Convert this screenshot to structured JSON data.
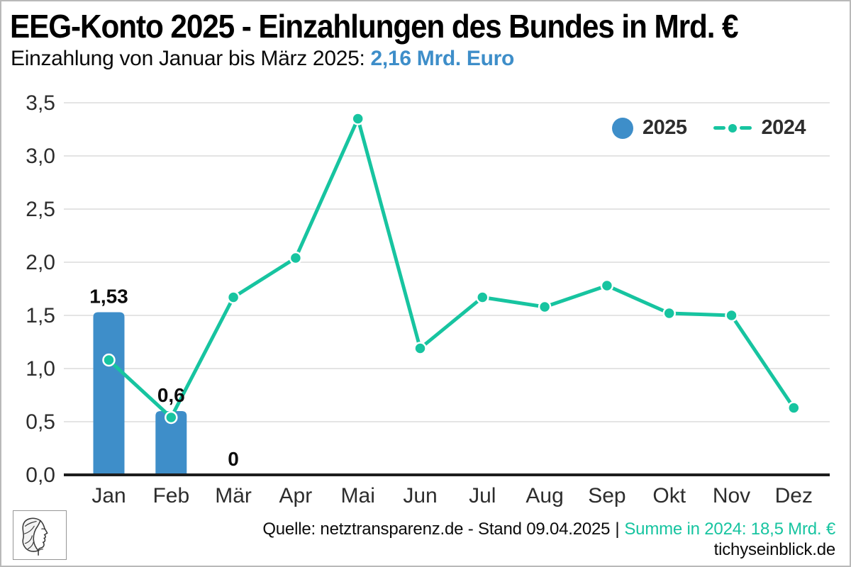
{
  "header": {
    "title": "EEG-Konto 2025 - Einzahlungen des Bundes in Mrd. €",
    "subtitle_prefix": "Einzahlung von Januar bis März 2025: ",
    "subtitle_highlight": "2,16 Mrd. Euro"
  },
  "legend": {
    "item_2025": "2025",
    "item_2024": "2024",
    "position": "top-right"
  },
  "footer": {
    "source_text": "Quelle: netztransparenz.de - Stand 09.04.2025",
    "separator": "|",
    "sum_text": "Summe in 2024: 18,5 Mrd. €",
    "site": "tichyseinblick.de"
  },
  "logo_name": "athena-head-engraving",
  "colors": {
    "bar_blue": "#3e8ec9",
    "line_teal": "#17c4a0",
    "highlight_blue": "#3e8ec9",
    "footer_teal": "#17c4a0",
    "grid_gray": "#e4e4e4",
    "axis_black": "#1d1d1d",
    "text_dark": "#2d2d2d"
  },
  "chart_data": {
    "type": "bar+line",
    "categories": [
      "Jan",
      "Feb",
      "Mär",
      "Apr",
      "Mai",
      "Jun",
      "Jul",
      "Aug",
      "Sep",
      "Okt",
      "Nov",
      "Dez"
    ],
    "series": [
      {
        "name": "2025",
        "type": "bar",
        "color": "#3e8ec9",
        "values": [
          1.53,
          0.6,
          0,
          null,
          null,
          null,
          null,
          null,
          null,
          null,
          null,
          null
        ],
        "value_labels": [
          "1,53",
          "0,6",
          "0",
          null,
          null,
          null,
          null,
          null,
          null,
          null,
          null,
          null
        ]
      },
      {
        "name": "2024",
        "type": "line",
        "color": "#17c4a0",
        "values": [
          1.08,
          0.54,
          1.67,
          2.04,
          3.35,
          1.19,
          1.67,
          1.58,
          1.78,
          1.52,
          1.5,
          0.63
        ]
      }
    ],
    "yticks": [
      "0,0",
      "0,5",
      "1,0",
      "1,5",
      "2,0",
      "2,5",
      "3,0",
      "3,5"
    ],
    "ylim": [
      0,
      3.5
    ],
    "grid": true,
    "legend_position": "top-right",
    "title": "EEG-Konto 2025 - Einzahlungen des Bundes in Mrd. €",
    "xlabel": "",
    "ylabel": ""
  }
}
